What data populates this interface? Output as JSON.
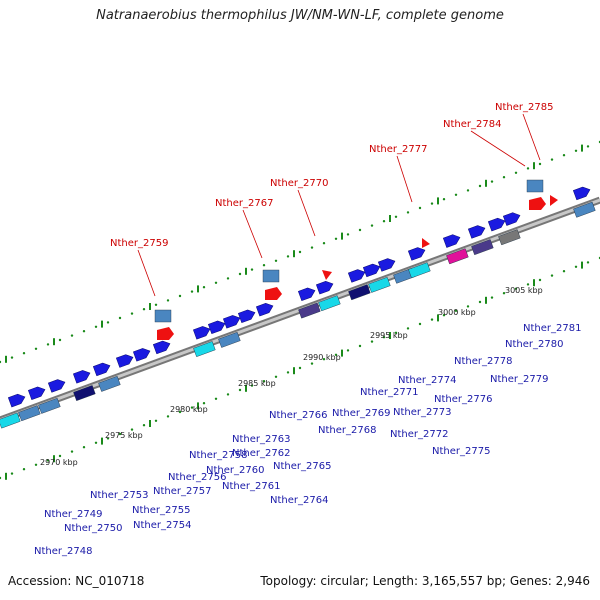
{
  "title": "Natranaerobius thermophilus JW/NM-WN-LF, complete genome",
  "footer": {
    "accession": "Accession: NC_010718",
    "topology": "Topology: circular; Length: 3,165,557 bp; Genes: 2,946"
  },
  "colors": {
    "backbone": "#9a9a9a",
    "forward_gene": "#1a1ae0",
    "highlight_gene": "#ee1111",
    "cds_steel": "#4a86c0",
    "cds_cyan": "#18d8e8",
    "cds_navy": "#101070",
    "cds_magenta": "#e0109a",
    "cds_purple": "#4a3a8a",
    "tick": "#1a8a1a",
    "label_red": "#cc0000",
    "label_blue": "#1a1aa8"
  },
  "scale_labels": [
    "2970 kbp",
    "2975 kbp",
    "2980 kbp",
    "2985 kbp",
    "2990 kbp",
    "2995 kbp",
    "3000 kbp",
    "3005 kbp"
  ],
  "red_labels": [
    "Nther_2759",
    "Nther_2767",
    "Nther_2770",
    "Nther_2777",
    "Nther_2784",
    "Nther_2785"
  ],
  "blue_labels": [
    "Nther_2748",
    "Nther_2749",
    "Nther_2750",
    "Nther_2753",
    "Nther_2754",
    "Nther_2755",
    "Nther_2756",
    "Nther_2757",
    "Nther_2758",
    "Nther_2760",
    "Nther_2761",
    "Nther_2762",
    "Nther_2763",
    "Nther_2764",
    "Nther_2765",
    "Nther_2766",
    "Nther_2768",
    "Nther_2769",
    "Nther_2771",
    "Nther_2772",
    "Nther_2773",
    "Nther_2774",
    "Nther_2775",
    "Nther_2776",
    "Nther_2778",
    "Nther_2779",
    "Nther_2780",
    "Nther_2781"
  ]
}
